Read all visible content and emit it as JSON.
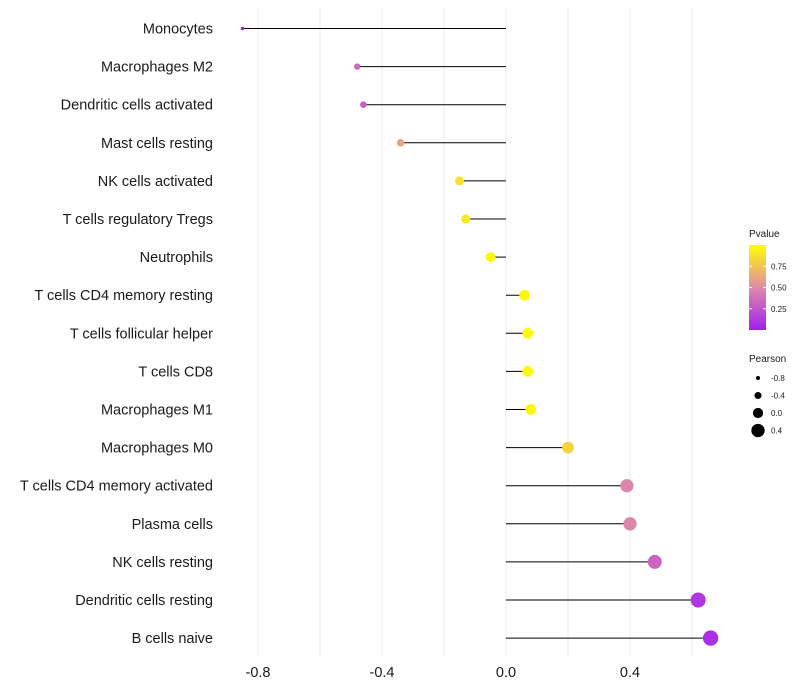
{
  "chart_data": {
    "type": "lollipop",
    "title": "",
    "xlabel": "",
    "ylabel": "",
    "xlim": [
      -0.92,
      0.72
    ],
    "x_ticks": [
      -0.8,
      -0.4,
      0.0,
      0.4
    ],
    "x_tick_labels": [
      "-0.8",
      "-0.4",
      "0.0",
      "0.4"
    ],
    "grid": "vertical",
    "categories": [
      "Monocytes",
      "Macrophages M2",
      "Dendritic cells activated",
      "Mast cells resting",
      "NK cells activated",
      "T cells regulatory  Tregs ",
      "Neutrophils",
      "T cells CD4 memory resting",
      "T cells follicular helper",
      "T cells CD8",
      "Macrophages M1",
      "Macrophages M0",
      "T cells CD4 memory activated",
      "Plasma cells",
      "NK cells resting",
      "Dendritic cells resting",
      "B cells naive"
    ],
    "pearson": [
      -0.85,
      -0.48,
      -0.46,
      -0.34,
      -0.15,
      -0.13,
      -0.05,
      0.06,
      0.07,
      0.07,
      0.08,
      0.2,
      0.39,
      0.4,
      0.48,
      0.62,
      0.66
    ],
    "pvalue": [
      0.0,
      0.35,
      0.3,
      0.62,
      0.88,
      0.9,
      0.97,
      0.96,
      0.98,
      0.98,
      0.97,
      0.82,
      0.48,
      0.48,
      0.32,
      0.12,
      0.08
    ],
    "color_legend": {
      "title": "Pvalue",
      "ticks": [
        0.25,
        0.5,
        0.75
      ],
      "tick_labels": [
        "0.25",
        "0.50",
        "0.75"
      ],
      "low_color": "#a020f0",
      "mid_color": "#e08aa8",
      "high_color": "#ffff00",
      "range": [
        0.0,
        1.0
      ]
    },
    "size_legend": {
      "title": "Pearson",
      "values": [
        -0.8,
        -0.4,
        0.0,
        0.4
      ],
      "labels": [
        "-0.8",
        "-0.4",
        "0.0",
        "0.4"
      ]
    },
    "legend_position": "right"
  }
}
